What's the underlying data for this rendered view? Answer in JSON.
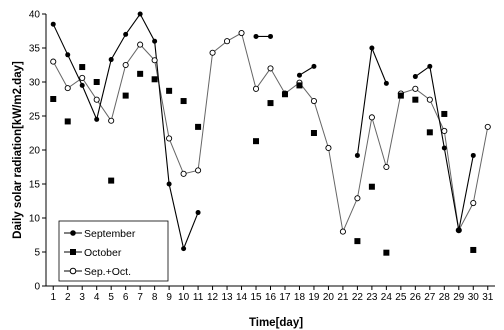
{
  "chart_data": {
    "type": "line",
    "xlabel": "Time[day]",
    "ylabel": "Daily solar radiation[kW/m2.day]",
    "x": [
      1,
      2,
      3,
      4,
      5,
      6,
      7,
      8,
      9,
      10,
      11,
      12,
      13,
      14,
      15,
      16,
      17,
      18,
      19,
      20,
      21,
      22,
      23,
      24,
      25,
      26,
      27,
      28,
      29,
      30,
      31
    ],
    "xlim": [
      0.5,
      31.5
    ],
    "ylim": [
      0,
      40
    ],
    "yticks": [
      0,
      5,
      10,
      15,
      20,
      25,
      30,
      35,
      40
    ],
    "grid": false,
    "legend": "bottom-left",
    "series": [
      {
        "name": "September",
        "marker": "dot",
        "values": [
          38.5,
          34,
          29.5,
          24.5,
          33.3,
          37,
          40,
          36,
          15,
          5.5,
          10.8,
          null,
          null,
          null,
          36.7,
          36.7,
          null,
          31,
          32.3,
          null,
          null,
          19.2,
          35,
          29.8,
          null,
          30.8,
          32.3,
          20.3,
          8.2,
          19.2,
          null
        ]
      },
      {
        "name": "October",
        "marker": "square",
        "values": [
          27.5,
          24.2,
          32.2,
          30,
          15.5,
          28,
          31.2,
          30.4,
          28.7,
          27.2,
          23.4,
          null,
          null,
          null,
          21.3,
          26.9,
          28.2,
          29.5,
          22.5,
          null,
          null,
          6.6,
          14.6,
          4.9,
          28,
          27.4,
          22.6,
          25.3,
          null,
          5.3,
          null
        ]
      },
      {
        "name": "Sep.+Oct.",
        "marker": "circle-open",
        "values": [
          33,
          29.1,
          30.6,
          27.4,
          24.3,
          32.5,
          35.5,
          33.2,
          21.7,
          16.5,
          17,
          34.3,
          36,
          37.2,
          29,
          32,
          28.3,
          29.9,
          27.2,
          20.3,
          8,
          12.9,
          24.8,
          17.5,
          28.3,
          29,
          27.4,
          22.8,
          8.2,
          12.2,
          23.4
        ]
      }
    ]
  },
  "labels": {
    "xlabel": "Time[day]",
    "ylabel": "Daily solar radiation[kW/m2.day]",
    "legend": [
      "September",
      "October",
      "Sep.+Oct."
    ]
  }
}
